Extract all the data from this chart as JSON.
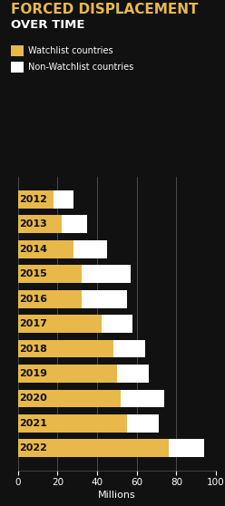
{
  "years": [
    "2012",
    "2013",
    "2014",
    "2015",
    "2016",
    "2017",
    "2018",
    "2019",
    "2020",
    "2021",
    "2022"
  ],
  "watchlist": [
    18,
    22,
    28,
    32,
    32,
    42,
    48,
    50,
    52,
    55,
    76
  ],
  "non_watchlist": [
    10,
    13,
    17,
    25,
    23,
    16,
    16,
    16,
    22,
    16,
    18
  ],
  "watchlist_color": "#E8B84B",
  "non_watchlist_color": "#FFFFFF",
  "background_color": "#111111",
  "bar_label_color": "#111111",
  "title_line1": "FORCED DISPLACEMENT",
  "title_line2": "OVER TIME",
  "title_color1": "#E8B84B",
  "title_color2": "#FFFFFF",
  "xlabel": "Millions",
  "xlim": [
    0,
    100
  ],
  "xticks": [
    0,
    20,
    40,
    60,
    80,
    100
  ],
  "legend_watchlist": "Watchlist countries",
  "legend_non_watchlist": "Non-Watchlist countries",
  "grid_color": "#555555",
  "title_fontsize": 11,
  "title2_fontsize": 9.5,
  "label_fontsize": 8,
  "tick_fontsize": 7.5,
  "bar_height": 0.72
}
